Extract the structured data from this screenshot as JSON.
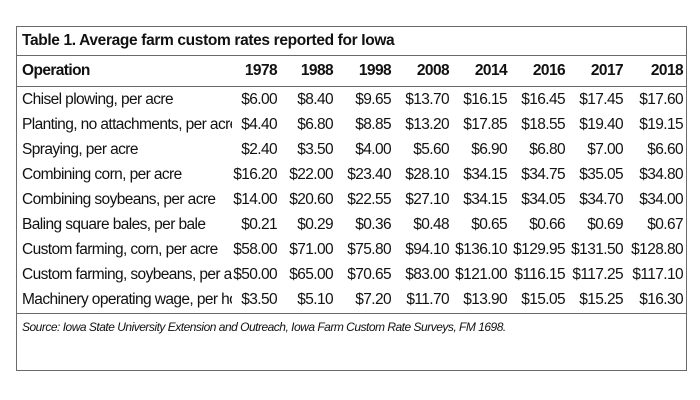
{
  "title": "Table 1. Average farm custom rates reported for Iowa",
  "columns": [
    "Operation",
    "1978",
    "1988",
    "1998",
    "2008",
    "2014",
    "2016",
    "2017",
    "2018"
  ],
  "rows": [
    [
      "Chisel plowing, per acre",
      "$6.00",
      "$8.40",
      "$9.65",
      "$13.70",
      "$16.15",
      "$16.45",
      "$17.45",
      "$17.60"
    ],
    [
      "Planting, no attachments, per acre",
      "$4.40",
      "$6.80",
      "$8.85",
      "$13.20",
      "$17.85",
      "$18.55",
      "$19.40",
      "$19.15"
    ],
    [
      "Spraying, per acre",
      "$2.40",
      "$3.50",
      "$4.00",
      "$5.60",
      "$6.90",
      "$6.80",
      "$7.00",
      "$6.60"
    ],
    [
      "Combining corn, per acre",
      "$16.20",
      "$22.00",
      "$23.40",
      "$28.10",
      "$34.15",
      "$34.75",
      "$35.05",
      "$34.80"
    ],
    [
      "Combining soybeans, per acre",
      "$14.00",
      "$20.60",
      "$22.55",
      "$27.10",
      "$34.15",
      "$34.05",
      "$34.70",
      "$34.00"
    ],
    [
      "Baling square bales, per bale",
      "$0.21",
      "$0.29",
      "$0.36",
      "$0.48",
      "$0.65",
      "$0.66",
      "$0.69",
      "$0.67"
    ],
    [
      "Custom farming, corn, per acre",
      "$58.00",
      "$71.00",
      "$75.80",
      "$94.10",
      "$136.10",
      "$129.95",
      "$131.50",
      "$128.80"
    ],
    [
      "Custom farming, soybeans, per acre",
      "$50.00",
      "$65.00",
      "$70.65",
      "$83.00",
      "$121.00",
      "$116.15",
      "$117.25",
      "$117.10"
    ],
    [
      "Machinery operating wage, per hour",
      "$3.50",
      "$5.10",
      "$7.20",
      "$11.70",
      "$13.90",
      "$15.05",
      "$15.25",
      "$16.30"
    ]
  ],
  "source": "Source: Iowa State University Extension and Outreach, Iowa Farm Custom Rate Surveys, FM 1698."
}
